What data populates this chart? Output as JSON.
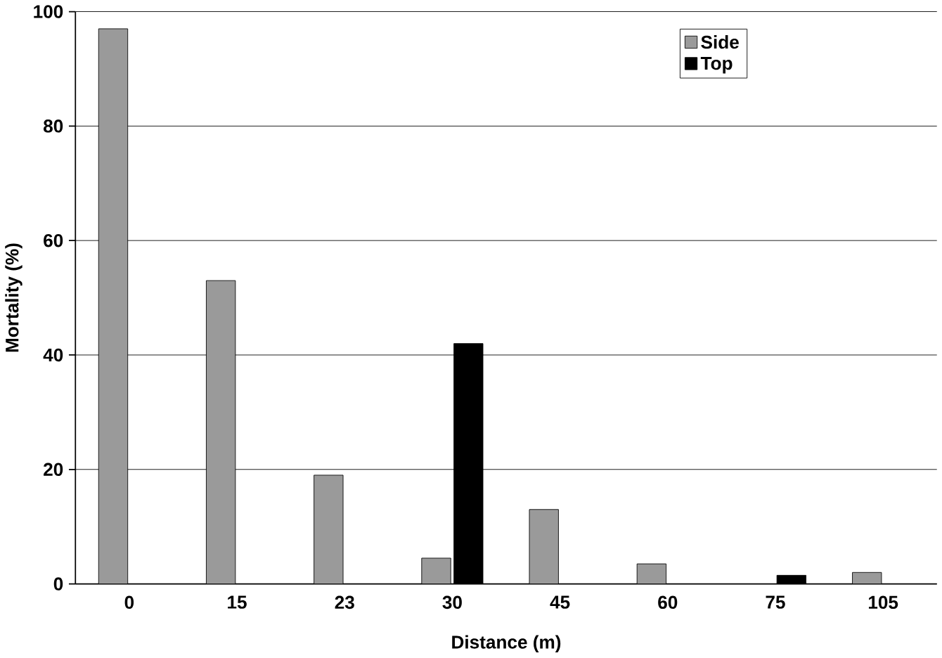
{
  "chart_data": {
    "type": "bar",
    "xlabel": "Distance (m)",
    "ylabel": "Mortality (%)",
    "categories": [
      "0",
      "15",
      "23",
      "30",
      "45",
      "60",
      "75",
      "105"
    ],
    "series": [
      {
        "name": "Side",
        "color": "#9a9a9a",
        "values": [
          97,
          53,
          19,
          4.5,
          13,
          3.5,
          null,
          2
        ]
      },
      {
        "name": "Top",
        "color": "#000000",
        "values": [
          null,
          null,
          null,
          42,
          null,
          null,
          1.5,
          null
        ]
      }
    ],
    "ylim": [
      0,
      100
    ],
    "yticks": [
      0,
      20,
      40,
      60,
      80,
      100
    ],
    "grid": "y",
    "legend": "top right"
  }
}
